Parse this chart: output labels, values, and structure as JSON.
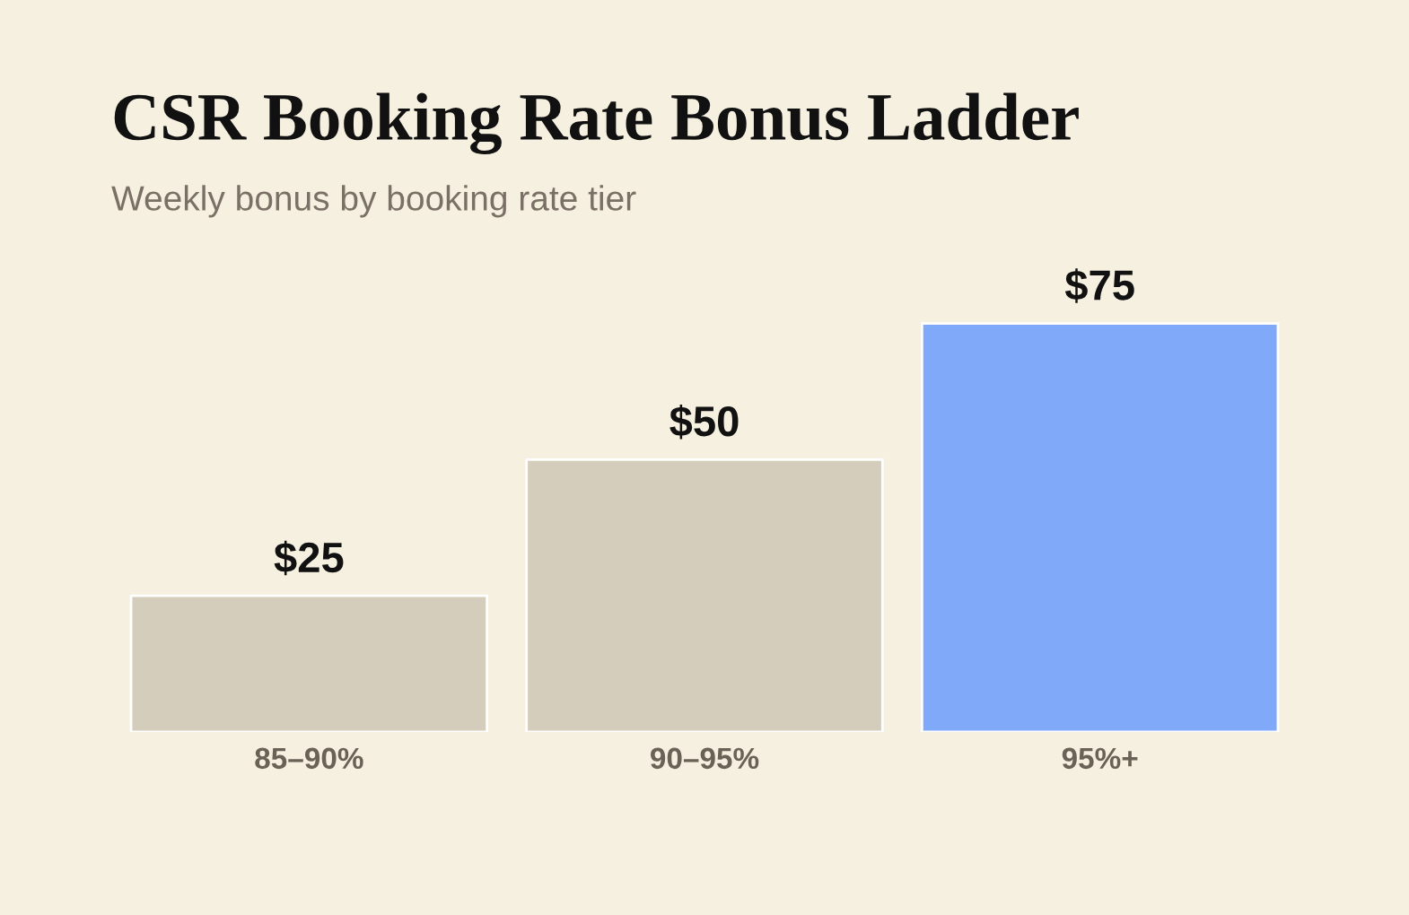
{
  "chart_data": {
    "type": "bar",
    "title": "CSR Booking Rate Bonus Ladder",
    "subtitle": "Weekly bonus by booking rate tier",
    "categories": [
      "85–90%",
      "90–95%",
      "95%+"
    ],
    "values": [
      25,
      50,
      75
    ],
    "colors": [
      "#d4cdbb",
      "#d4cdbb",
      "#80aaf9"
    ],
    "value_labels": [
      "$25",
      "$50",
      "$75"
    ],
    "grid": false,
    "legend": false
  }
}
